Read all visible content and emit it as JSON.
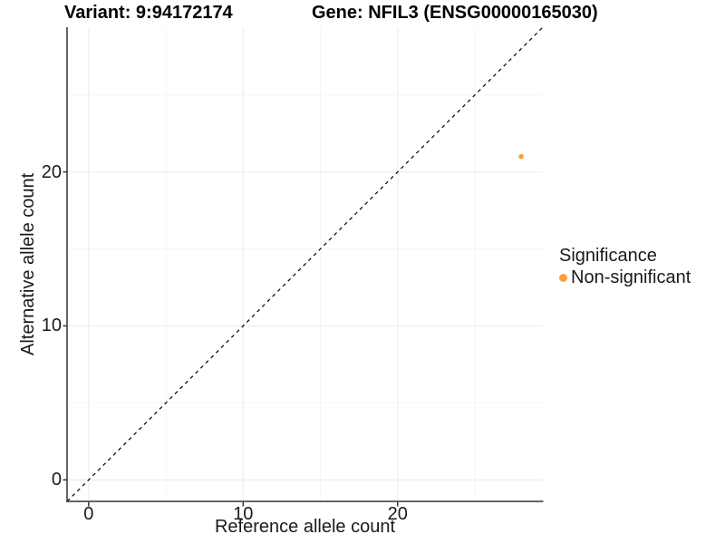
{
  "page": {
    "background": "#FFFFFF"
  },
  "chart_data": {
    "type": "scatter",
    "titles": [
      "Variant: 9:94172174",
      "Gene: NFIL3 (ENSG00000165030)"
    ],
    "xlabel": "Reference allele count",
    "ylabel": "Alternative allele count",
    "xlim": [
      -1.4,
      29.4
    ],
    "ylim": [
      -1.4,
      29.4
    ],
    "x_ticks": {
      "major": [
        0,
        10,
        20
      ],
      "minor": [
        5,
        15,
        25
      ]
    },
    "y_ticks": {
      "major": [
        0,
        10,
        20
      ],
      "minor": [
        5,
        15,
        25
      ]
    },
    "grid": true,
    "reference_line": {
      "type": "identity",
      "equation": "y = x",
      "style": "dashed",
      "color": "#000000"
    },
    "series": [
      {
        "name": "Non-significant",
        "color": "#F9A13B",
        "point_radius": 2.8,
        "points": [
          {
            "x": 28,
            "y": 21
          }
        ]
      }
    ],
    "legend": {
      "title": "Significance",
      "position": "right",
      "items": [
        {
          "label": "Non-significant",
          "color": "#F9A13B"
        }
      ]
    },
    "colors": {
      "axis_line": "#333333",
      "tick_label": "#1A1A1A",
      "grid_major": "#EBEBEB",
      "grid_minor": "#F6F6F6"
    }
  }
}
